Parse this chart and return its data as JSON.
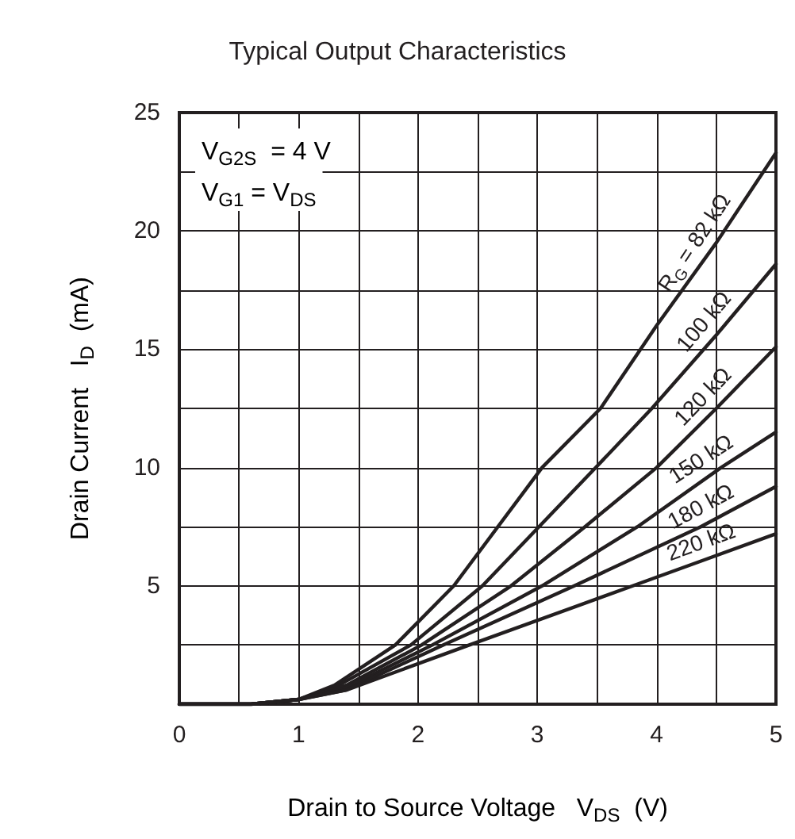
{
  "chart_data": {
    "type": "line",
    "title": "Typical Output Characteristics",
    "xlabel": "Drain to Source Voltage   V$_{DS}$  (V)",
    "ylabel": "Drain Current   I$_{D}$  (mA)",
    "annotations": [
      "V$_{G2S}$  = 4 V",
      "V$_{G1}$ = V$_{DS}$"
    ],
    "xlim": [
      0,
      5
    ],
    "ylim": [
      0,
      25
    ],
    "xticks": [
      0,
      {
        "value": 0.5,
        "label": null
      },
      1,
      {
        "value": 1.5,
        "label": null
      },
      2,
      {
        "value": 2.5,
        "label": null
      },
      3,
      {
        "value": 3.5,
        "label": null
      },
      4,
      {
        "value": 4.5,
        "label": null
      },
      5
    ],
    "yticks": [
      {
        "value": 0,
        "label": null
      },
      {
        "value": 2.5,
        "label": null
      },
      5,
      {
        "value": 7.5,
        "label": null
      },
      10,
      {
        "value": 12.5,
        "label": null
      },
      15,
      {
        "value": 17.5,
        "label": null
      },
      20,
      {
        "value": 22.5,
        "label": null
      },
      25
    ],
    "grid": true,
    "legend": false,
    "marker": "none",
    "line_style": "solid",
    "series": [
      {
        "name": "R$_{G}$ = 82 kΩ",
        "color": "#231f20",
        "x": [
          0,
          0.6,
          1,
          1.3,
          1.81,
          2.3,
          3.04,
          3.53,
          4,
          4.5,
          5
        ],
        "values": [
          0,
          0,
          0.2,
          0.8,
          2.5,
          5,
          10,
          12.5,
          16,
          19.5,
          23.3
        ]
      },
      {
        "name": "100 kΩ",
        "color": "#231f20",
        "x": [
          0,
          0.6,
          1,
          1.3,
          1.94,
          2.54,
          3.49,
          3.96,
          4.5,
          5
        ],
        "values": [
          0,
          0,
          0.2,
          0.7,
          2.5,
          5,
          10,
          12.5,
          15.6,
          18.6
        ]
      },
      {
        "name": "120 kΩ",
        "color": "#231f20",
        "x": [
          0,
          0.6,
          1,
          1.4,
          2.03,
          2.78,
          3.4,
          4,
          4.5,
          5
        ],
        "values": [
          0,
          0,
          0.2,
          0.8,
          2.5,
          5,
          7.5,
          10,
          12.5,
          15.1
        ]
      },
      {
        "name": "150 kΩ",
        "color": "#231f20",
        "x": [
          0,
          0.6,
          1,
          1.4,
          2.12,
          3.04,
          3.84,
          4.54,
          5
        ],
        "values": [
          0,
          0,
          0.2,
          0.7,
          2.5,
          5,
          7.5,
          10,
          11.5
        ]
      },
      {
        "name": "180 kΩ",
        "color": "#231f20",
        "x": [
          0,
          0.6,
          1,
          1.4,
          2.21,
          3.31,
          4.37,
          5
        ],
        "values": [
          0,
          0,
          0.2,
          0.6,
          2.5,
          5,
          7.5,
          9.2
        ]
      },
      {
        "name": "220 kΩ",
        "color": "#231f20",
        "x": [
          0,
          0.6,
          1,
          1.4,
          2.43,
          3.8,
          4.4,
          5
        ],
        "values": [
          0,
          0,
          0.2,
          0.6,
          2.5,
          5,
          6.1,
          7.2
        ]
      }
    ]
  }
}
